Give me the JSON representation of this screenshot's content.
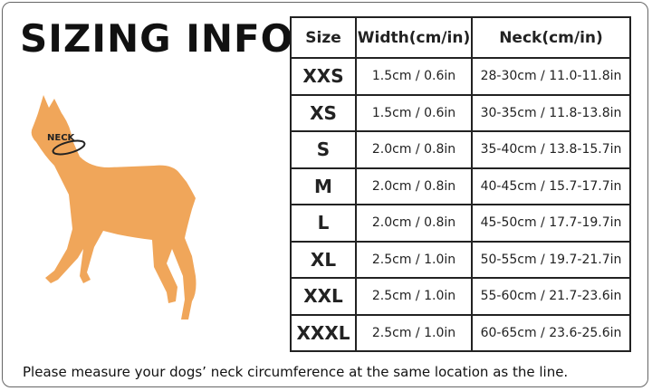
{
  "header": {
    "title": "SIZING INFO"
  },
  "illustration": {
    "label": "NECK"
  },
  "table": {
    "columns": [
      "Size",
      "Width(cm/in)",
      "Neck(cm/in)"
    ],
    "rows": [
      [
        "XXS",
        "1.5cm / 0.6in",
        "28-30cm / 11.0-11.8in"
      ],
      [
        "XS",
        "1.5cm / 0.6in",
        "30-35cm / 11.8-13.8in"
      ],
      [
        "S",
        "2.0cm / 0.8in",
        "35-40cm / 13.8-15.7in"
      ],
      [
        "M",
        "2.0cm / 0.8in",
        "40-45cm / 15.7-17.7in"
      ],
      [
        "L",
        "2.0cm / 0.8in",
        "45-50cm / 17.7-19.7in"
      ],
      [
        "XL",
        "2.5cm / 1.0in",
        "50-55cm / 19.7-21.7in"
      ],
      [
        "XXL",
        "2.5cm / 1.0in",
        "55-60cm / 21.7-23.6in"
      ],
      [
        "XXXL",
        "2.5cm / 1.0in",
        "60-65cm / 23.6-25.6in"
      ]
    ]
  },
  "footer": {
    "note": "Please measure your dogs’ neck circumference at the same location as the line."
  }
}
